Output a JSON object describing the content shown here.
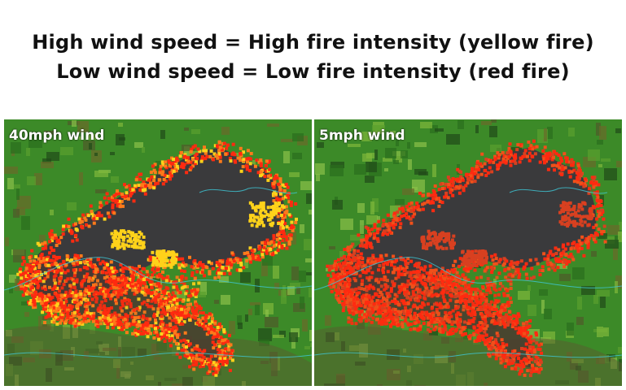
{
  "title": {
    "line1": "High wind speed = High fire intensity (yellow fire)",
    "line2": "Low wind speed = Low fire intensity (red fire)"
  },
  "panels": [
    {
      "label": "40mph wind",
      "fire_colors": [
        "#ff2a10",
        "#ff7a1a",
        "#ffd21a"
      ]
    },
    {
      "label": "5mph wind",
      "fire_colors": [
        "#ff2a10",
        "#f0501a",
        "#d84020"
      ]
    }
  ],
  "colors": {
    "vegetation": "#3c8a28",
    "burned": "#3a3a3c",
    "boundary": "#3fc7d6"
  }
}
